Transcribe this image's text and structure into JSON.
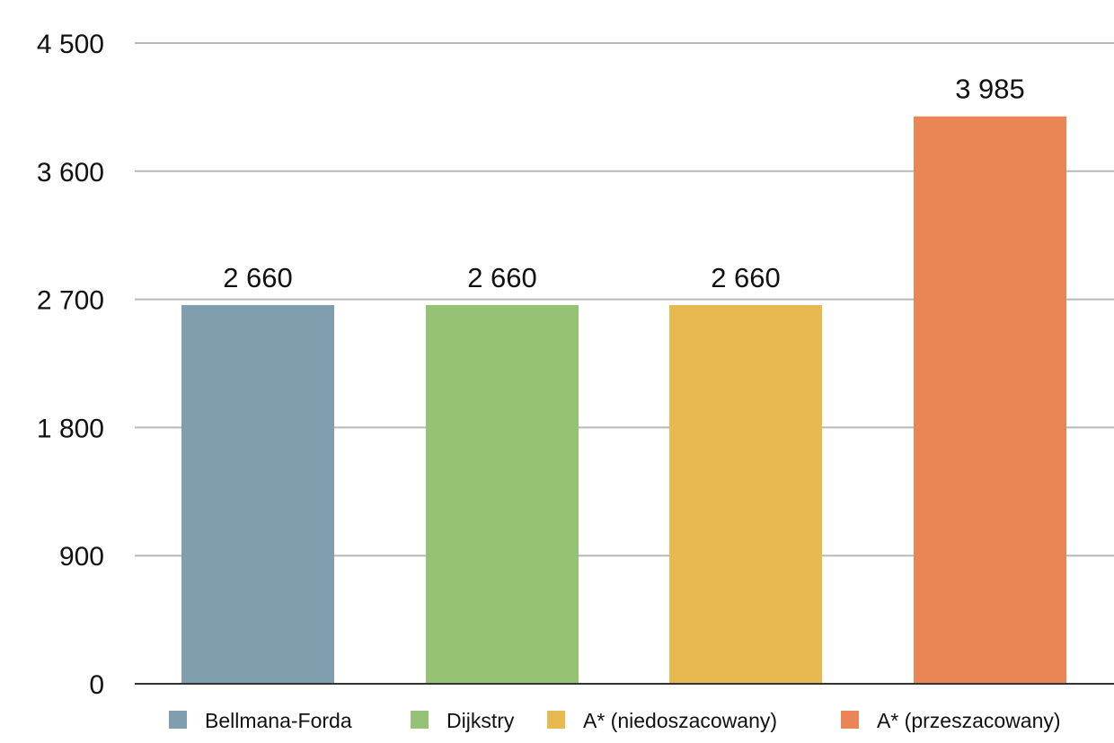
{
  "chart_data": {
    "type": "bar",
    "title": "",
    "xlabel": "",
    "ylabel": "",
    "ylim": [
      0,
      4500
    ],
    "yticks": [
      0,
      900,
      1800,
      2700,
      3600,
      4500
    ],
    "ytick_labels": [
      "0",
      "900",
      "1 800",
      "2 700",
      "3 600",
      "4 500"
    ],
    "grid": true,
    "legend_position": "bottom",
    "series": [
      {
        "name": "Bellmana-Forda",
        "value": 2660,
        "label": "2 660",
        "color": "#7f9faf"
      },
      {
        "name": "Dijkstry",
        "value": 2660,
        "label": "2 660",
        "color": "#95c275"
      },
      {
        "name": "A* (niedoszacowany)",
        "value": 2660,
        "label": "2 660",
        "color": "#e8b94f"
      },
      {
        "name": "A* (przeszacowany)",
        "value": 3985,
        "label": "3 985",
        "color": "#ea8556"
      }
    ]
  }
}
